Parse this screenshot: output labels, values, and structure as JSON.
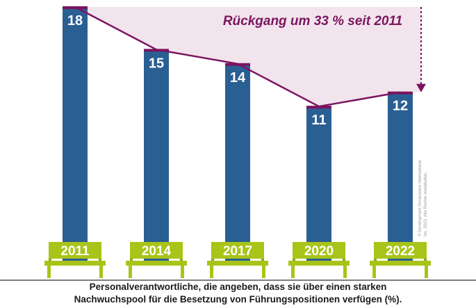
{
  "chart_data": {
    "type": "bar",
    "categories": [
      "2011",
      "2014",
      "2017",
      "2020",
      "2022"
    ],
    "values": [
      18,
      15,
      14,
      11,
      12
    ],
    "annotation": "Rückgang um 33 % seit 2011",
    "caption_lines": [
      "Personalverantwortliche, die angeben, dass sie über einen starken",
      "Nachwuchspool für die Besetzung von Führungspositionen verfügen (%)."
    ],
    "copyright_lines": [
      "© Development Dimensions International,",
      "Inc. 2023. Alle Rechte vorbehalten."
    ]
  },
  "colors": {
    "bar": "#2a5f93",
    "bar_top": "#7b1560",
    "trend": "#7b1560",
    "shade": "#f2e4ec",
    "bench": "#a9c419",
    "bench_dark": "#8fa815"
  }
}
